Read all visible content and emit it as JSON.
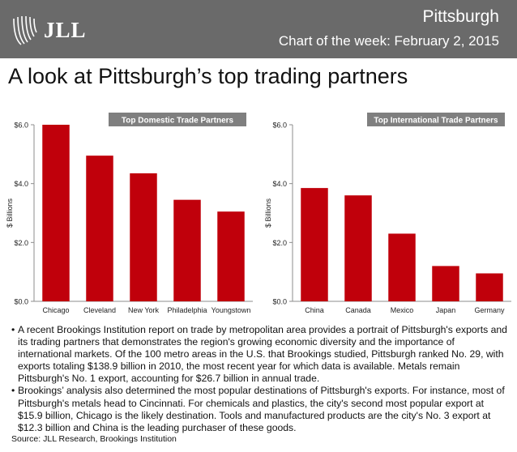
{
  "header": {
    "logo_text": "JLL",
    "city": "Pittsburgh",
    "subtitle": "Chart of the week: February 2, 2015"
  },
  "headline": "A look at Pittsburgh’s top trading partners",
  "colors": {
    "header": "#6a6a6a",
    "bar": "#c0000b",
    "label_band": "#7f7f7f"
  },
  "chart_data": [
    {
      "type": "bar",
      "title": "Top Domestic Trade Partners",
      "ylabel": "$ Billions",
      "categories": [
        "Chicago",
        "Cleveland",
        "New York",
        "Philadelphia",
        "Youngstown"
      ],
      "values": [
        6.0,
        4.95,
        4.35,
        3.45,
        3.05
      ],
      "yticks": [
        "$0.0",
        "$2.0",
        "$4.0",
        "$6.0"
      ],
      "ylim": [
        0,
        6
      ],
      "grid": false
    },
    {
      "type": "bar",
      "title": "Top International Trade Partners",
      "ylabel": "$ Billions",
      "categories": [
        "China",
        "Canada",
        "Mexico",
        "Japan",
        "Germany"
      ],
      "values": [
        3.85,
        3.6,
        2.3,
        1.2,
        0.95
      ],
      "yticks": [
        "$0.0",
        "$2.0",
        "$4.0",
        "$6.0"
      ],
      "ylim": [
        0,
        6
      ],
      "grid": false
    }
  ],
  "bullets": [
    "A recent Brookings Institution report on trade by metropolitan area provides a portrait of Pittsburgh's exports and its trading partners that demonstrates the region's growing economic diversity and the importance of international markets. Of the 100 metro areas in the U.S. that Brookings studied, Pittsburgh ranked No. 29, with exports totaling $138.9 billion in 2010, the most recent year for which data is available. Metals remain Pittsburgh's No. 1 export, accounting for $26.7 billion in annual trade.",
    "Brookings’ analysis also determined the most popular destinations of Pittsburgh's exports. For instance, most of Pittsburgh's metals head to Cincinnati. For chemicals and plastics, the city's second most popular export at $15.9 billion, Chicago is the likely destination. Tools and manufactured products are the city's No. 3 export at $12.3 billion and China is the leading purchaser of these goods."
  ],
  "bullet_symbol": "•",
  "source": "Source: JLL Research, Brookings Institution"
}
